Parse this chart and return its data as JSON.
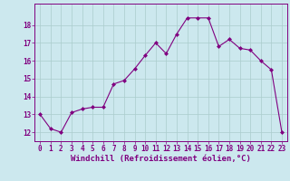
{
  "x": [
    0,
    1,
    2,
    3,
    4,
    5,
    6,
    7,
    8,
    9,
    10,
    11,
    12,
    13,
    14,
    15,
    16,
    17,
    18,
    19,
    20,
    21,
    22,
    23
  ],
  "y": [
    13.0,
    12.2,
    12.0,
    13.1,
    13.3,
    13.4,
    13.4,
    14.7,
    14.9,
    15.55,
    16.3,
    17.0,
    16.4,
    17.5,
    18.4,
    18.4,
    18.4,
    16.8,
    17.2,
    16.7,
    16.6,
    16.0,
    15.5,
    12.0
  ],
  "line_color": "#800080",
  "marker": "D",
  "markersize": 2.0,
  "linewidth": 0.8,
  "bg_color": "#cce8ee",
  "grid_color": "#aacccc",
  "xlabel": "Windchill (Refroidissement éolien,°C)",
  "xlabel_fontsize": 6.5,
  "ylabel_ticks": [
    12,
    13,
    14,
    15,
    16,
    17,
    18
  ],
  "xtick_labels": [
    "0",
    "1",
    "2",
    "3",
    "4",
    "5",
    "6",
    "7",
    "8",
    "9",
    "10",
    "11",
    "12",
    "13",
    "14",
    "15",
    "16",
    "17",
    "18",
    "19",
    "20",
    "21",
    "22",
    "23"
  ],
  "ylim": [
    11.5,
    19.2
  ],
  "xlim": [
    -0.5,
    23.5
  ],
  "tick_fontsize": 5.5,
  "tick_color": "#800080",
  "label_color": "#800080",
  "spine_color": "#800080"
}
